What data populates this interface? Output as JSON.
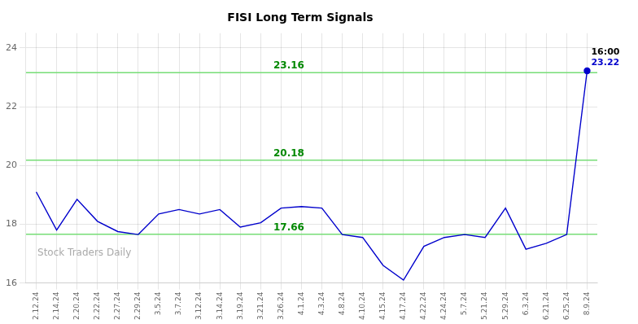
{
  "chart_data": {
    "type": "line",
    "title": "FISI Long Term Signals",
    "watermark": "Stock Traders Daily",
    "categories": [
      "2.12.24",
      "2.14.24",
      "2.20.24",
      "2.22.24",
      "2.27.24",
      "2.29.24",
      "3.5.24",
      "3.7.24",
      "3.12.24",
      "3.14.24",
      "3.19.24",
      "3.21.24",
      "3.26.24",
      "4.1.24",
      "4.3.24",
      "4.8.24",
      "4.10.24",
      "4.15.24",
      "4.17.24",
      "4.22.24",
      "4.24.24",
      "5.7.24",
      "5.21.24",
      "5.29.24",
      "6.3.24",
      "6.21.24",
      "6.25.24",
      "8.9.24"
    ],
    "series": [
      {
        "name": "FISI",
        "color": "#0000cc",
        "values": [
          19.1,
          17.8,
          18.85,
          18.1,
          17.75,
          17.65,
          18.35,
          18.5,
          18.35,
          18.5,
          17.9,
          18.05,
          18.55,
          18.6,
          18.55,
          17.65,
          17.55,
          16.6,
          16.1,
          17.25,
          17.55,
          17.65,
          17.55,
          18.55,
          17.15,
          17.35,
          17.65,
          23.22
        ]
      }
    ],
    "hlines": [
      {
        "value": 17.66,
        "label": "17.66",
        "color": "#77dd77",
        "label_color": "#008800"
      },
      {
        "value": 20.18,
        "label": "20.18",
        "color": "#77dd77",
        "label_color": "#008800"
      },
      {
        "value": 23.16,
        "label": "23.16",
        "color": "#77dd77",
        "label_color": "#008800"
      }
    ],
    "annotations": [
      {
        "text": "16:00",
        "color": "#000000"
      },
      {
        "text": "23.22",
        "color": "#0000cc"
      }
    ],
    "ylim": [
      16,
      24.5
    ],
    "yticks": [
      16,
      18,
      20,
      22,
      24
    ],
    "grid": true
  }
}
